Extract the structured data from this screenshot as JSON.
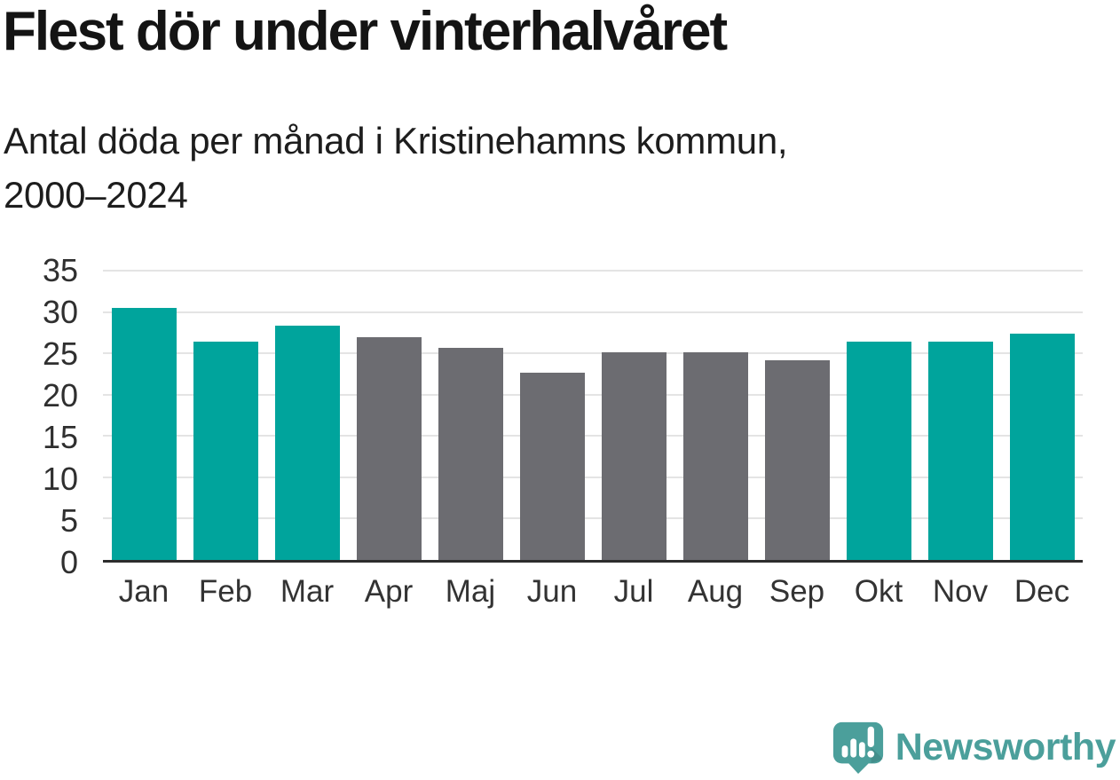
{
  "header": {
    "title": "Flest dör under vinterhalvåret",
    "subtitle_line1": "Antal döda per månad i Kristinehamns kommun,",
    "subtitle_line2": "2000–2024"
  },
  "chart_data": {
    "type": "bar",
    "title": "Flest dör under vinterhalvåret",
    "subtitle": "Antal döda per månad i Kristinehamns kommun, 2000–2024",
    "categories": [
      "Jan",
      "Feb",
      "Mar",
      "Apr",
      "Maj",
      "Jun",
      "Jul",
      "Aug",
      "Sep",
      "Okt",
      "Nov",
      "Dec"
    ],
    "values": [
      30.5,
      26.4,
      28.3,
      27.0,
      25.7,
      22.7,
      25.1,
      25.1,
      24.2,
      26.4,
      26.4,
      27.4
    ],
    "bar_color_keys": [
      "teal",
      "teal",
      "teal",
      "gray",
      "gray",
      "gray",
      "gray",
      "gray",
      "gray",
      "teal",
      "teal",
      "teal"
    ],
    "xlabel": "",
    "ylabel": "",
    "ylim": [
      0,
      35
    ],
    "yticks": [
      0,
      5,
      10,
      15,
      20,
      25,
      30,
      35
    ],
    "grid": "horizontal-only",
    "legend": "none",
    "palette": {
      "teal": "#00a49c",
      "gray": "#6c6c71",
      "gridline": "#e4e4e4",
      "axis": "#2d2d2d",
      "tick_text": "#2f2f2f"
    }
  },
  "footer": {
    "brand": "Newsworthy",
    "brand_color": "#4b9f9b",
    "icon": "newsworthy-speech-bubble-bar-chart-icon"
  }
}
